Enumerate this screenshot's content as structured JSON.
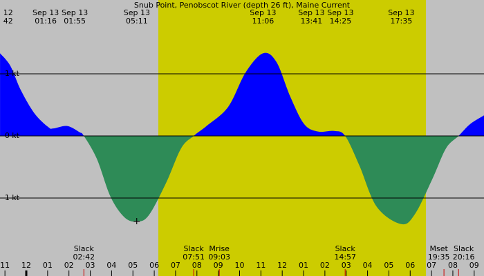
{
  "chart_data": {
    "type": "area",
    "title": "Snub Point, Penobscot River (depth 26 ft), Maine Current",
    "background_color": "#c0c0c0",
    "daylight": [
      6.19,
      18.74
    ],
    "daylight_color": "#cccc00",
    "positive_color": "#0000ff",
    "negative_color": "#2e8b57",
    "xlim": [
      -1.232,
      21.46
    ],
    "ylim": [
      -2.256,
      2.189
    ],
    "yticks": [
      {
        "value": 1,
        "label": "1 kt"
      },
      {
        "value": 0,
        "label": "0 kt"
      },
      {
        "value": -1,
        "label": "-1 kt"
      }
    ],
    "xticks": [
      {
        "value": -1,
        "label": "11"
      },
      {
        "value": 0,
        "label": "12"
      },
      {
        "value": 1,
        "label": "01"
      },
      {
        "value": 2,
        "label": "02"
      },
      {
        "value": 3,
        "label": "03"
      },
      {
        "value": 4,
        "label": "04"
      },
      {
        "value": 5,
        "label": "05"
      },
      {
        "value": 6,
        "label": "06"
      },
      {
        "value": 7,
        "label": "07"
      },
      {
        "value": 8,
        "label": "08"
      },
      {
        "value": 9,
        "label": "09"
      },
      {
        "value": 10,
        "label": "10"
      },
      {
        "value": 11,
        "label": "11"
      },
      {
        "value": 12,
        "label": "12"
      },
      {
        "value": 13,
        "label": "01"
      },
      {
        "value": 14,
        "label": "02"
      },
      {
        "value": 15,
        "label": "03"
      },
      {
        "value": 16,
        "label": "04"
      },
      {
        "value": 17,
        "label": "05"
      },
      {
        "value": 18,
        "label": "06"
      },
      {
        "value": 19,
        "label": "07"
      },
      {
        "value": 20,
        "label": "08"
      },
      {
        "value": 21,
        "label": "09"
      }
    ],
    "x": [
      -1.23,
      -0.75,
      -0.26,
      0.39,
      1.04,
      1.27,
      1.92,
      2.5,
      2.7,
      3.31,
      3.95,
      4.6,
      5.18,
      5.74,
      6.55,
      7.26,
      7.85,
      8.49,
      9.47,
      10.28,
      11.1,
      11.73,
      12.38,
      13.03,
      13.68,
      14.42,
      14.95,
      15.62,
      16.43,
      17.58,
      18.22,
      19.03,
      19.68,
      20.27,
      20.81,
      21.46
    ],
    "values": [
      1.33,
      1.13,
      0.74,
      0.36,
      0.14,
      0.12,
      0.16,
      0.06,
      0,
      -0.37,
      -0.98,
      -1.31,
      -1.38,
      -1.28,
      -0.76,
      -0.2,
      0,
      0.17,
      0.47,
      1.02,
      1.33,
      1.19,
      0.63,
      0.19,
      0.07,
      0.08,
      0,
      -0.48,
      -1.14,
      -1.42,
      -1.26,
      -0.7,
      -0.2,
      0,
      0.19,
      0.33
    ],
    "marker": {
      "x": 5.18,
      "value": -1.38,
      "label": "+"
    },
    "top_events": [
      {
        "x": -0.85,
        "date": "12",
        "time": "42"
      },
      {
        "x": 1.267,
        "date": "Sep 13",
        "time": "01:16"
      },
      {
        "x": 1.917,
        "date": "Sep 13",
        "time": "01:55"
      },
      {
        "x": 5.183,
        "date": "Sep 13",
        "time": "05:11"
      },
      {
        "x": 11.1,
        "date": "Sep 13",
        "time": "11:06"
      },
      {
        "x": 13.683,
        "date": "Sep 13",
        "time": "13:41"
      },
      {
        "x": 14.417,
        "date": "Sep 13",
        "time": "14:25"
      },
      {
        "x": 17.583,
        "date": "Sep 13",
        "time": "17:35"
      }
    ],
    "bottom_events": [
      {
        "x": 2.7,
        "name": "Slack",
        "time": "02:42"
      },
      {
        "x": 7.85,
        "name": "Slack",
        "time": "07:51"
      },
      {
        "x": 9.05,
        "name": "Mrise",
        "time": "09:03"
      },
      {
        "x": 14.95,
        "name": "Slack",
        "time": "14:57"
      },
      {
        "x": 19.583,
        "name": "Mset",
        "time": "19:35"
      },
      {
        "x": 20.267,
        "name": "Slack",
        "time": "20:16"
      }
    ]
  }
}
